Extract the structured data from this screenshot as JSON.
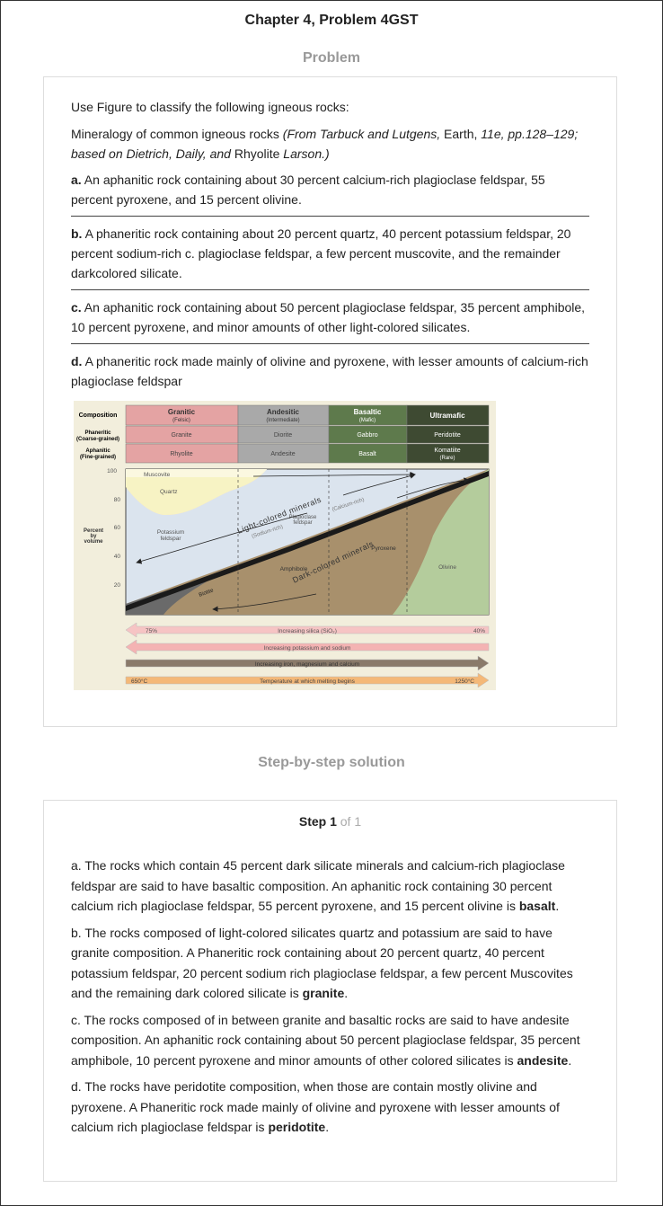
{
  "header": {
    "title": "Chapter 4, Problem 4GST"
  },
  "problem": {
    "heading": "Problem",
    "intro": "Use Figure to classify the following igneous rocks:",
    "caption": {
      "a": "Mineralogy of common igneous rocks ",
      "b": "(From Tarbuck  and Lutgens,",
      "c": " Earth,",
      "d": " 11e, pp.128–129; based on Dietrich, Daily, and",
      "e": " Rhyolite",
      "f": " Larson.)"
    },
    "questions": [
      {
        "label": "a.",
        "text": " An aphanitic rock containing about 30 percent calcium-rich plagioclase feldspar, 55 percent pyroxene, and 15 percent olivine."
      },
      {
        "label": "b.",
        "text": " A phaneritic rock containing about 20 percent quartz, 40 percent potassium feldspar, 20 percent sodium-rich c. plagioclase feldspar, a few percent muscovite, and the remainder darkcolored silicate."
      },
      {
        "label": "c.",
        "text": " An aphanitic rock containing about 50 percent plagioclase feldspar, 35 percent amphibole, 10 percent pyroxene, and minor amounts of other light-colored silicates."
      },
      {
        "label": "d.",
        "text": " A phaneritic rock made mainly of olivine and pyroxene, with lesser amounts of calcium-rich plagioclase feldspar"
      }
    ]
  },
  "figure": {
    "row_labels": {
      "composition": "Composition",
      "phaneritic": "Phaneritic",
      "phaneritic_sub": "(Coarse-grained)",
      "aphanitic": "Aphanitic",
      "aphanitic_sub": "(Fine-grained)"
    },
    "columns": [
      {
        "name": "Granitic",
        "sub": "(Felsic)",
        "phaneritic": "Granite",
        "aphanitic": "Rhyolite",
        "color": "#e4a3a3"
      },
      {
        "name": "Andesitic",
        "sub": "(Intermediate)",
        "phaneritic": "Diorite",
        "aphanitic": "Andesite",
        "color": "#a9a9a9"
      },
      {
        "name": "Basaltic",
        "sub": "(Mafic)",
        "phaneritic": "Gabbro",
        "aphanitic": "Basalt",
        "color": "#5e7a4c"
      },
      {
        "name": "Ultramafic",
        "sub": "",
        "phaneritic": "Peridotite",
        "aphanitic": "Komatiite",
        "aphanitic_sub": "(Rare)",
        "color": "#3e4a32"
      }
    ],
    "y_axis": {
      "label1": "Percent",
      "label2": "by",
      "label3": "volume",
      "ticks": [
        "100",
        "80",
        "60",
        "40",
        "20"
      ]
    },
    "minerals": {
      "muscovite": "Muscovite",
      "quartz": "Quartz",
      "potassium": "Potassium",
      "feldspar": "feldspar",
      "light": "Light-colored minerals",
      "plagioclase1": "Plagioclase",
      "plagioclase2": "feldspar",
      "calcium": "(Calcium-rich)",
      "sodium": "(Sodium-rich)",
      "dark": "Dark-colored minerals",
      "pyroxene": "Pyroxene",
      "amphibole": "Amphibole",
      "biotite": "Biotite",
      "olivine": "Olivine"
    },
    "arrows": [
      {
        "label": "Increasing silica (SiO₂)",
        "left": "75%",
        "right": "40%"
      },
      {
        "label": "Increasing potassium and sodium"
      },
      {
        "label": "Increasing iron, magnesium and calcium"
      },
      {
        "label": "Temperature at which melting begins",
        "left": "650°C",
        "right": "1250°C"
      }
    ],
    "colors": {
      "pink": "#f5cfcf",
      "yellow": "#f7f3c4",
      "blue": "#dbe4ee",
      "brown": "#a8906c",
      "green": "#b4cc9c",
      "black": "#1a1a1a",
      "bg": "#f2eedc"
    }
  },
  "solution": {
    "heading": "Step-by-step solution",
    "step_label": "Step 1",
    "step_of": " of 1",
    "paragraphs": [
      {
        "text": "a. The rocks which contain 45 percent dark silicate minerals and calcium-rich plagioclase feldspar are said to have basaltic composition. An aphanitic rock containing 30 percent calcium rich plagioclase feldspar, 55 percent pyroxene, and 15 percent olivine is ",
        "answer": "basalt",
        "end": "."
      },
      {
        "text": "b. The rocks composed of light-colored silicates quartz and potassium are said to have granite composition. A Phaneritic rock containing about 20 percent quartz, 40 percent potassium feldspar, 20 percent sodium rich plagioclase feldspar, a few percent Muscovites and the remaining dark colored silicate is ",
        "answer": "granite",
        "end": "."
      },
      {
        "text": "c. The rocks composed of in between granite and basaltic rocks are said to have andesite composition. An aphanitic rock containing about 50 percent plagioclase feldspar, 35 percent amphibole, 10 percent pyroxene and minor amounts of other colored silicates is ",
        "answer": "andesite",
        "end": "."
      },
      {
        "text": "d. The rocks have peridotite composition, when those are contain mostly olivine and pyroxene. A Phaneritic rock made mainly of olivine and pyroxene with lesser amounts of calcium rich plagioclase feldspar is ",
        "answer": "peridotite",
        "end": "."
      }
    ]
  }
}
